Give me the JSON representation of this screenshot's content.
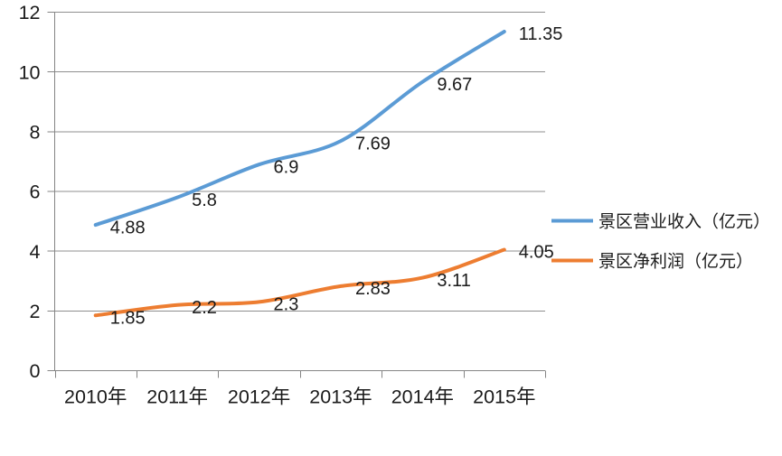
{
  "chart_data": {
    "type": "line",
    "title": "",
    "xlabel": "",
    "ylabel": "",
    "categories": [
      "2010年",
      "2011年",
      "2012年",
      "2013年",
      "2014年",
      "2015年"
    ],
    "series": [
      {
        "name": "景区营业收入（亿元）",
        "values": [
          4.88,
          5.8,
          6.9,
          7.69,
          9.67,
          11.35
        ],
        "labels": [
          "4.88",
          "5.8",
          "6.9",
          "7.69",
          "9.67",
          "11.35"
        ],
        "color": "#5B9BD5"
      },
      {
        "name": "景区净利润（亿元）",
        "values": [
          1.85,
          2.2,
          2.3,
          2.83,
          3.11,
          4.05
        ],
        "labels": [
          "1.85",
          "2.2",
          "2.3",
          "2.83",
          "3.11",
          "4.05"
        ],
        "color": "#ED7D31"
      }
    ],
    "ylim": [
      0,
      12
    ],
    "yticks": [
      0,
      2,
      4,
      6,
      8,
      10,
      12
    ],
    "ytick_labels": [
      "0",
      "2",
      "4",
      "6",
      "8",
      "10",
      "12"
    ],
    "grid": true,
    "smooth_lines": true,
    "data_labels": true,
    "legend_position": "right",
    "colors": {
      "grid": "#8F8F8F",
      "axis": "#858585",
      "text": "#1A1A1A",
      "background": "#FFFFFF"
    }
  }
}
